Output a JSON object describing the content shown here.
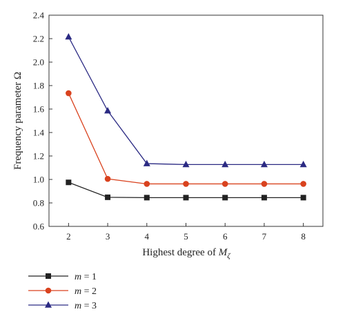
{
  "chart_data": {
    "type": "line",
    "x": [
      2,
      3,
      4,
      5,
      6,
      7,
      8
    ],
    "series": [
      {
        "name_var": "m",
        "name_eq": " = ",
        "name_val": "1",
        "color": "#222222",
        "marker": "square",
        "values": [
          0.975,
          0.848,
          0.845,
          0.845,
          0.845,
          0.845,
          0.845
        ]
      },
      {
        "name_var": "m",
        "name_eq": " = ",
        "name_val": "2",
        "color": "#d9421e",
        "marker": "circle",
        "values": [
          1.735,
          1.005,
          0.962,
          0.962,
          0.962,
          0.962,
          0.962
        ]
      },
      {
        "name_var": "m",
        "name_eq": " = ",
        "name_val": "3",
        "color": "#2b2a83",
        "marker": "triangle",
        "values": [
          2.215,
          1.585,
          1.135,
          1.127,
          1.127,
          1.127,
          1.127
        ]
      }
    ],
    "xlabel_text": "Highest degree of ",
    "xlabel_var": "M",
    "xlabel_sub": "ζ",
    "ylabel": "Frequency parameter Ω",
    "xlim": [
      1.5,
      8.5
    ],
    "ylim": [
      0.6,
      2.4
    ],
    "xticks": [
      "2",
      "3",
      "4",
      "5",
      "6",
      "7",
      "8"
    ],
    "yticks": [
      "0.6",
      "0.8",
      "1.0",
      "1.2",
      "1.4",
      "1.6",
      "1.8",
      "2.0",
      "2.2",
      "2.4"
    ],
    "grid": false,
    "legend_position": "below"
  }
}
